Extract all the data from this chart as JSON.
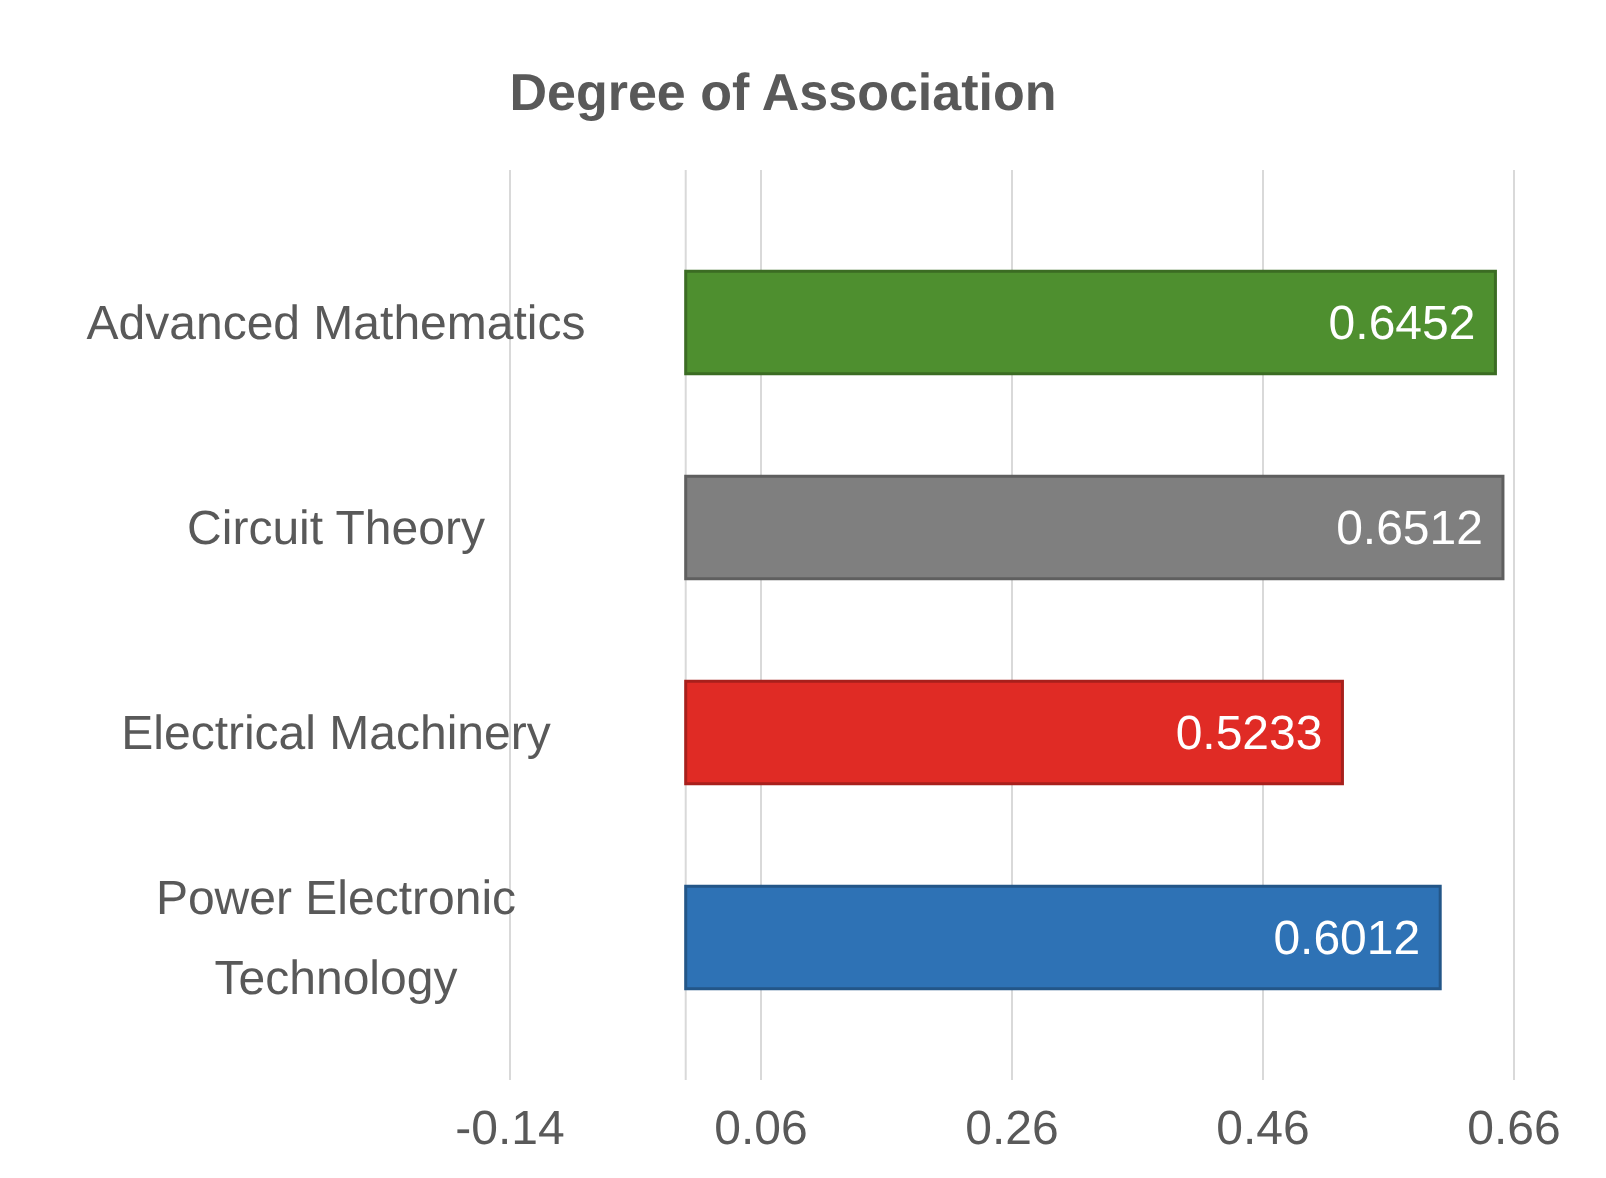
{
  "chart_data": {
    "type": "bar",
    "orientation": "horizontal",
    "title": "Degree of Association",
    "categories": [
      "Advanced Mathematics",
      "Circuit Theory",
      "Electrical Machinery",
      "Power Electronic Technology"
    ],
    "values": [
      0.6452,
      0.6512,
      0.5233,
      0.6012
    ],
    "colors": [
      "#4e8f2f",
      "#7f7f7f",
      "#e02b25",
      "#2e72b5"
    ],
    "xlim": [
      -0.14,
      0.66
    ],
    "xticks": [
      -0.14,
      0.06,
      0.26,
      0.46,
      0.66
    ],
    "grid": "x",
    "data_labels": true
  }
}
